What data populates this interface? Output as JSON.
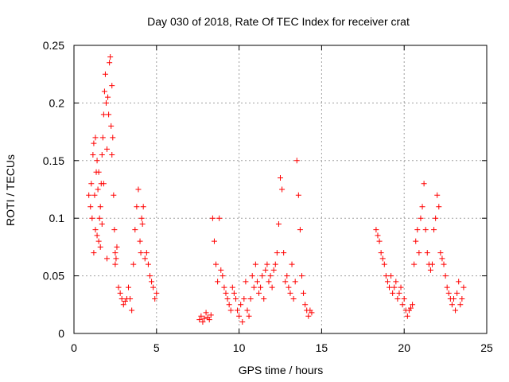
{
  "chart_data": {
    "type": "scatter",
    "title": "Day 030 of 2018, Rate Of TEC Index for receiver crat",
    "xlabel": "GPS time / hours",
    "ylabel": "ROTI / TECUs",
    "xlim": [
      0,
      25
    ],
    "ylim": [
      0,
      0.25
    ],
    "x_ticks": [
      0,
      5,
      10,
      15,
      20,
      25
    ],
    "x_tick_labels": [
      "0",
      "5",
      "10",
      "15",
      "20",
      "25"
    ],
    "y_ticks": [
      0,
      0.05,
      0.1,
      0.15,
      0.2,
      0.25
    ],
    "y_tick_labels": [
      "0",
      "0.05",
      "0.1",
      "0.15",
      "0.2",
      "0.25"
    ],
    "grid": true,
    "marker": "+",
    "marker_color": "#ff0000",
    "series": [
      {
        "name": "ROTI",
        "x": [
          0.9,
          1.0,
          1.05,
          1.1,
          1.15,
          1.2,
          1.2,
          1.25,
          1.3,
          1.3,
          1.35,
          1.4,
          1.4,
          1.45,
          1.5,
          1.5,
          1.55,
          1.6,
          1.6,
          1.65,
          1.7,
          1.7,
          1.75,
          1.8,
          1.8,
          1.85,
          1.9,
          1.95,
          2.0,
          2.0,
          2.05,
          2.1,
          2.15,
          2.2,
          2.25,
          2.3,
          2.3,
          2.35,
          2.4,
          2.45,
          2.5,
          2.5,
          2.55,
          2.6,
          2.7,
          2.8,
          2.9,
          3.0,
          3.1,
          3.2,
          3.3,
          3.4,
          3.5,
          3.6,
          3.7,
          3.8,
          3.9,
          4.0,
          4.05,
          4.1,
          4.15,
          4.2,
          4.3,
          4.4,
          4.5,
          4.6,
          4.7,
          4.8,
          4.9,
          5.0,
          7.6,
          7.7,
          7.8,
          7.9,
          8.0,
          8.1,
          8.2,
          8.3,
          8.4,
          8.5,
          8.6,
          8.7,
          8.8,
          8.9,
          9.0,
          9.1,
          9.2,
          9.3,
          9.4,
          9.5,
          9.6,
          9.7,
          9.8,
          9.9,
          10.0,
          10.1,
          10.2,
          10.3,
          10.4,
          10.5,
          10.6,
          10.7,
          10.8,
          10.9,
          11.0,
          11.1,
          11.2,
          11.3,
          11.4,
          11.5,
          11.6,
          11.7,
          11.8,
          11.9,
          12.0,
          12.1,
          12.2,
          12.3,
          12.4,
          12.5,
          12.6,
          12.7,
          12.8,
          12.9,
          13.0,
          13.1,
          13.2,
          13.3,
          13.4,
          13.5,
          13.6,
          13.7,
          13.8,
          13.9,
          14.0,
          14.1,
          14.2,
          14.3,
          14.4,
          18.3,
          18.4,
          18.5,
          18.6,
          18.7,
          18.8,
          18.9,
          19.0,
          19.1,
          19.2,
          19.3,
          19.4,
          19.5,
          19.6,
          19.7,
          19.8,
          19.9,
          20.0,
          20.1,
          20.2,
          20.3,
          20.4,
          20.5,
          20.6,
          20.7,
          20.8,
          20.9,
          21.0,
          21.1,
          21.2,
          21.3,
          21.4,
          21.5,
          21.6,
          21.7,
          21.8,
          21.9,
          22.0,
          22.1,
          22.2,
          22.3,
          22.4,
          22.5,
          22.6,
          22.7,
          22.8,
          22.9,
          23.0,
          23.1,
          23.2,
          23.3,
          23.4,
          23.5,
          23.6
        ],
        "y": [
          0.12,
          0.11,
          0.13,
          0.1,
          0.155,
          0.165,
          0.07,
          0.12,
          0.17,
          0.09,
          0.14,
          0.085,
          0.15,
          0.125,
          0.08,
          0.14,
          0.1,
          0.075,
          0.11,
          0.13,
          0.155,
          0.095,
          0.17,
          0.19,
          0.13,
          0.21,
          0.225,
          0.2,
          0.16,
          0.065,
          0.205,
          0.19,
          0.235,
          0.24,
          0.18,
          0.215,
          0.155,
          0.17,
          0.12,
          0.09,
          0.07,
          0.06,
          0.065,
          0.075,
          0.04,
          0.035,
          0.03,
          0.025,
          0.028,
          0.03,
          0.04,
          0.03,
          0.02,
          0.06,
          0.09,
          0.11,
          0.125,
          0.08,
          0.07,
          0.1,
          0.095,
          0.11,
          0.065,
          0.07,
          0.06,
          0.05,
          0.045,
          0.04,
          0.03,
          0.035,
          0.012,
          0.015,
          0.01,
          0.013,
          0.018,
          0.014,
          0.012,
          0.016,
          0.1,
          0.08,
          0.06,
          0.045,
          0.1,
          0.055,
          0.05,
          0.04,
          0.035,
          0.03,
          0.025,
          0.02,
          0.04,
          0.035,
          0.03,
          0.02,
          0.015,
          0.025,
          0.01,
          0.03,
          0.045,
          0.02,
          0.015,
          0.03,
          0.05,
          0.04,
          0.06,
          0.045,
          0.035,
          0.04,
          0.05,
          0.03,
          0.055,
          0.06,
          0.045,
          0.05,
          0.04,
          0.055,
          0.06,
          0.07,
          0.095,
          0.135,
          0.125,
          0.07,
          0.045,
          0.05,
          0.04,
          0.035,
          0.06,
          0.03,
          0.045,
          0.15,
          0.12,
          0.09,
          0.05,
          0.035,
          0.025,
          0.02,
          0.015,
          0.02,
          0.018,
          0.09,
          0.085,
          0.08,
          0.07,
          0.065,
          0.06,
          0.05,
          0.045,
          0.04,
          0.05,
          0.035,
          0.04,
          0.045,
          0.03,
          0.035,
          0.04,
          0.025,
          0.03,
          0.02,
          0.015,
          0.02,
          0.022,
          0.025,
          0.06,
          0.08,
          0.09,
          0.07,
          0.1,
          0.11,
          0.13,
          0.09,
          0.07,
          0.06,
          0.055,
          0.06,
          0.09,
          0.1,
          0.12,
          0.11,
          0.07,
          0.065,
          0.06,
          0.05,
          0.04,
          0.035,
          0.03,
          0.025,
          0.03,
          0.02,
          0.035,
          0.045,
          0.025,
          0.03,
          0.04
        ]
      }
    ]
  }
}
